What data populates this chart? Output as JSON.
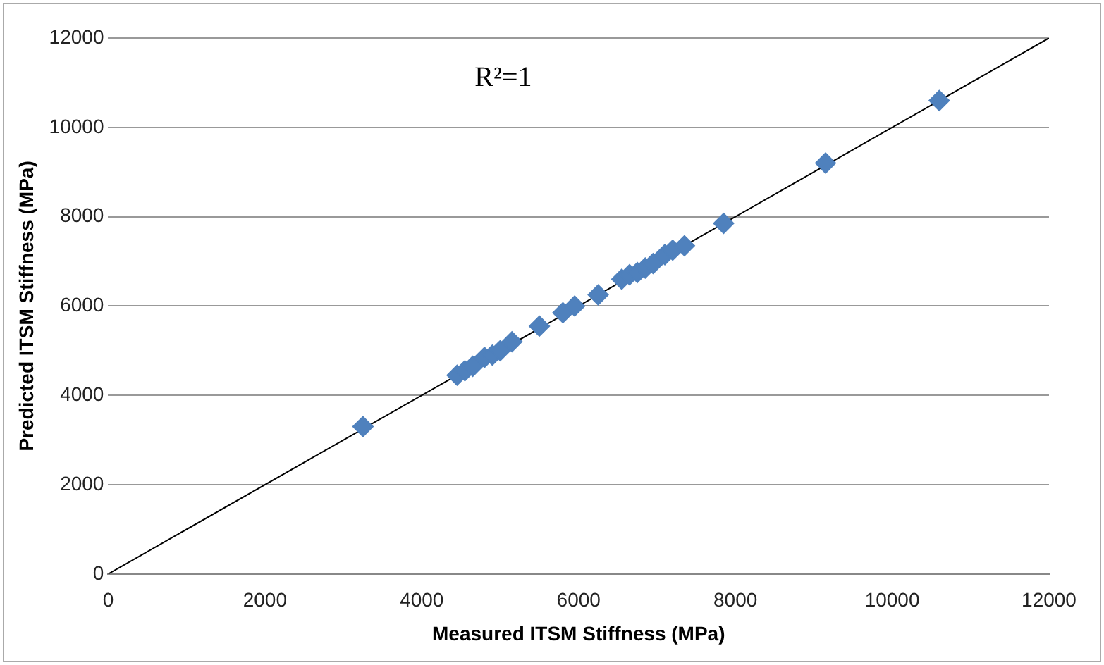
{
  "chart_data": {
    "type": "scatter",
    "xlabel": "Measured ITSM Stiffness (MPa)",
    "ylabel": "Predicted ITSM Stiffness (MPa)",
    "xlim": [
      0,
      12000
    ],
    "xticks": [
      0,
      2000,
      4000,
      6000,
      8000,
      10000,
      12000
    ],
    "ylim": [
      0,
      12000
    ],
    "yticks": [
      0,
      2000,
      4000,
      6000,
      8000,
      10000,
      12000
    ],
    "grid": "y",
    "marker": "diamond",
    "legend": false,
    "annotations": [
      "R²=1"
    ],
    "series": [
      {
        "color": "#4f81bd",
        "x": [
          3250,
          4450,
          4550,
          4650,
          4750,
          4800,
          4900,
          5000,
          5150,
          5500,
          5800,
          5950,
          6250,
          6550,
          6650,
          6750,
          6850,
          6950,
          7100,
          7200,
          7350,
          7850,
          9150,
          10600
        ],
        "values": [
          3300,
          4450,
          4550,
          4650,
          null,
          4850,
          4900,
          5000,
          5200,
          5550,
          5850,
          6000,
          6250,
          6600,
          6700,
          6750,
          6850,
          6950,
          7150,
          7250,
          7350,
          7850,
          9200,
          10600
        ]
      },
      {
        "type": "line",
        "color": "#000000",
        "marker": "none",
        "x": [
          0,
          12000
        ],
        "values": [
          0,
          12000
        ]
      }
    ]
  }
}
